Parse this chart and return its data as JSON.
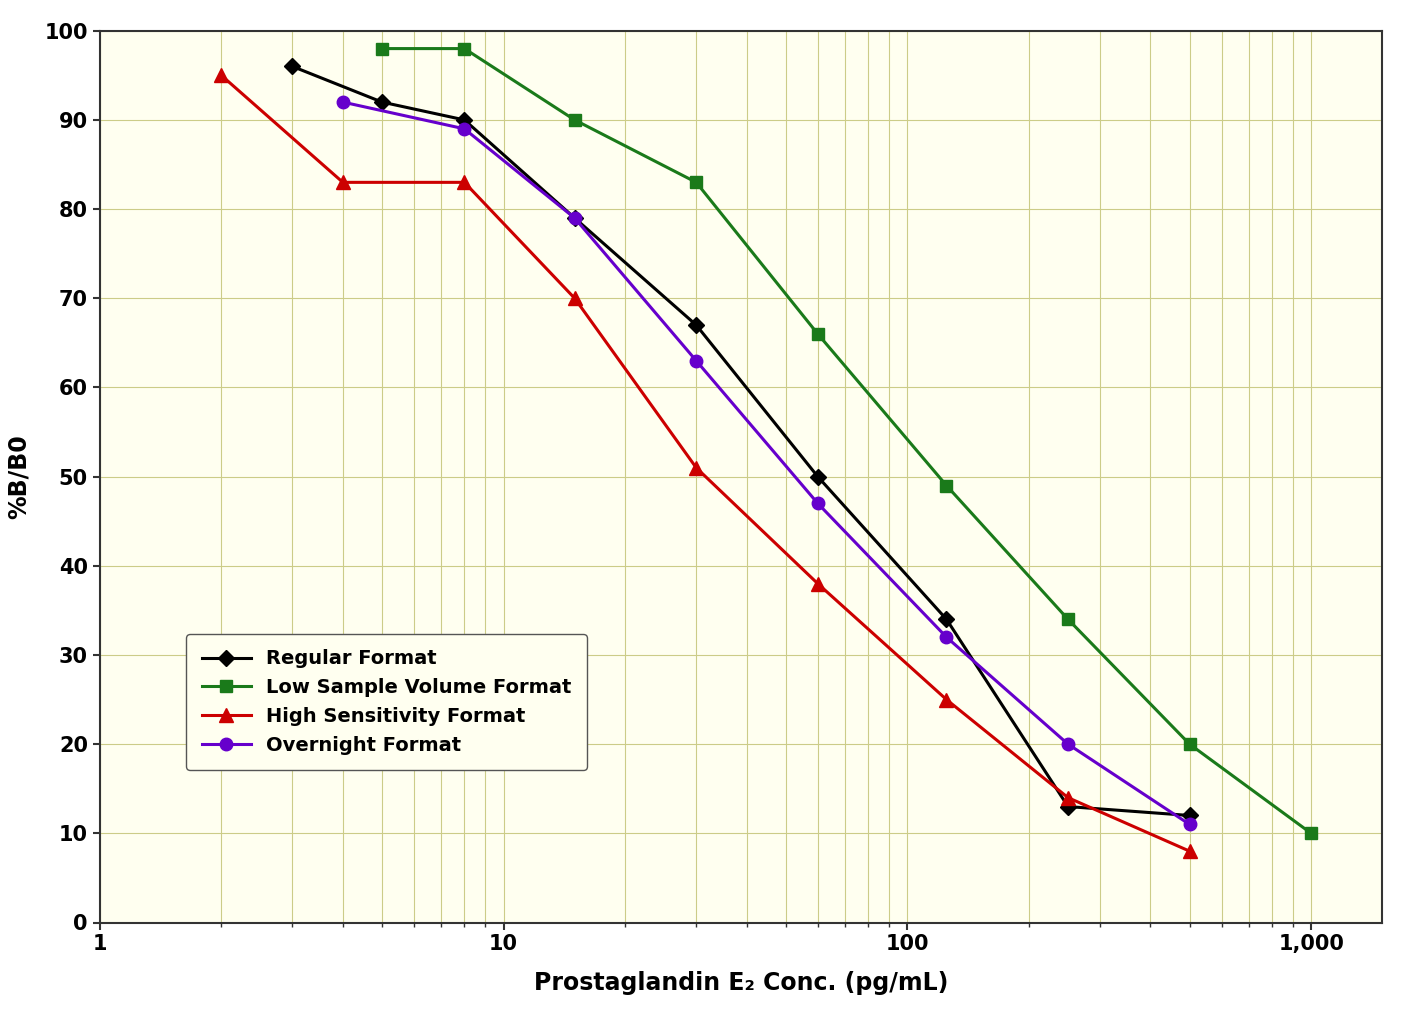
{
  "background_color": "#FFFFFF",
  "plot_bg_color": "#FFFFF0",
  "grid_color": "#CCCC88",
  "ylabel": "%B/B0",
  "xlim": [
    1,
    1500
  ],
  "ylim": [
    0,
    100
  ],
  "yticks": [
    0,
    10,
    20,
    30,
    40,
    50,
    60,
    70,
    80,
    90,
    100
  ],
  "series": {
    "Regular Format": {
      "color": "#000000",
      "marker": "D",
      "markersize": 8,
      "linewidth": 2.2,
      "x": [
        3,
        5,
        8,
        15,
        30,
        60,
        125,
        250,
        500
      ],
      "y": [
        96,
        92,
        90,
        79,
        67,
        50,
        34,
        13,
        12
      ]
    },
    "Low Sample Volume Format": {
      "color": "#1a7a1a",
      "marker": "s",
      "markersize": 9,
      "linewidth": 2.2,
      "x": [
        5,
        8,
        15,
        30,
        60,
        125,
        250,
        500,
        1000
      ],
      "y": [
        98,
        98,
        90,
        83,
        66,
        49,
        34,
        20,
        10
      ]
    },
    "High Sensitivity Format": {
      "color": "#cc0000",
      "marker": "^",
      "markersize": 10,
      "linewidth": 2.2,
      "x": [
        2,
        4,
        8,
        15,
        30,
        60,
        125,
        250,
        500
      ],
      "y": [
        95,
        83,
        83,
        70,
        51,
        38,
        25,
        14,
        8
      ]
    },
    "Overnight Format": {
      "color": "#6600cc",
      "marker": "o",
      "markersize": 9,
      "linewidth": 2.2,
      "x": [
        4,
        8,
        15,
        30,
        60,
        125,
        250,
        500
      ],
      "y": [
        92,
        89,
        79,
        63,
        47,
        32,
        20,
        11
      ]
    }
  },
  "legend_fontsize": 14,
  "tick_fontsize": 15,
  "label_fontsize": 17
}
